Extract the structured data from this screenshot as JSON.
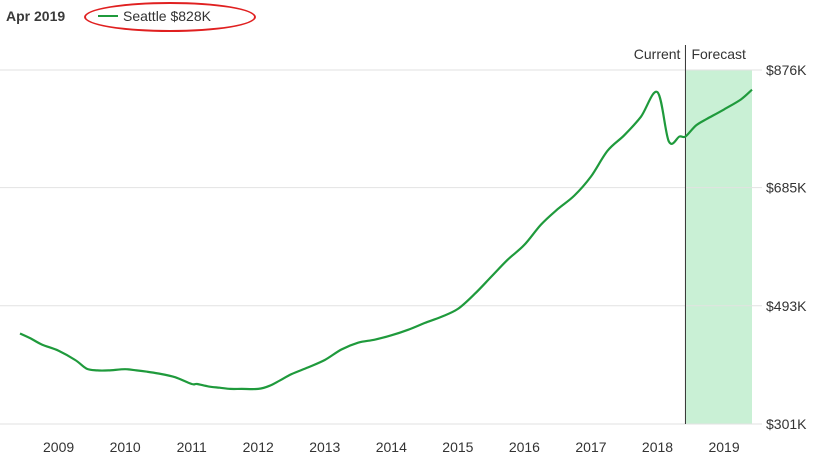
{
  "header": {
    "date_label": "Apr 2019"
  },
  "legend": {
    "label": "Seattle $828K",
    "color": "#1f9a3c",
    "highlight_color": "#e02020"
  },
  "divider": {
    "current_label": "Current",
    "forecast_label": "Forecast",
    "forecast_fill": "#c9f0d5"
  },
  "chart_data": {
    "type": "line",
    "title": "",
    "xlabel": "",
    "ylabel": "",
    "x_ticks": [
      "2009",
      "2010",
      "2011",
      "2012",
      "2013",
      "2014",
      "2015",
      "2016",
      "2017",
      "2018",
      "2019"
    ],
    "y_ticks": [
      "$876K",
      "$685K",
      "$493K",
      "$301K"
    ],
    "ylim": [
      301,
      876
    ],
    "xlim": [
      2008.42,
      2019.42
    ],
    "current_x": 2018.42,
    "grid": "horizontal",
    "series": [
      {
        "name": "Seattle",
        "color": "#1f9a3c",
        "x": [
          2008.42,
          2008.58,
          2008.75,
          2009.0,
          2009.25,
          2009.42,
          2009.58,
          2009.75,
          2010.0,
          2010.17,
          2010.33,
          2010.5,
          2010.75,
          2011.0,
          2011.08,
          2011.25,
          2011.42,
          2011.58,
          2011.75,
          2012.0,
          2012.17,
          2012.33,
          2012.5,
          2012.75,
          2013.0,
          2013.25,
          2013.5,
          2013.75,
          2014.0,
          2014.25,
          2014.5,
          2014.75,
          2015.0,
          2015.25,
          2015.5,
          2015.75,
          2016.0,
          2016.25,
          2016.5,
          2016.75,
          2017.0,
          2017.25,
          2017.5,
          2017.75,
          2018.0,
          2018.17,
          2018.33,
          2018.42,
          2018.58,
          2018.75,
          2019.0,
          2019.25,
          2019.42
        ],
        "values": [
          448,
          440,
          430,
          420,
          405,
          391,
          388,
          388,
          390,
          388,
          386,
          383,
          377,
          366,
          366,
          362,
          360,
          358,
          358,
          358,
          363,
          372,
          382,
          393,
          405,
          422,
          433,
          438,
          445,
          454,
          465,
          475,
          488,
          512,
          540,
          568,
          592,
          625,
          650,
          672,
          703,
          745,
          770,
          800,
          840,
          760,
          768,
          768,
          786,
          797,
          812,
          828,
          844
        ]
      }
    ]
  }
}
